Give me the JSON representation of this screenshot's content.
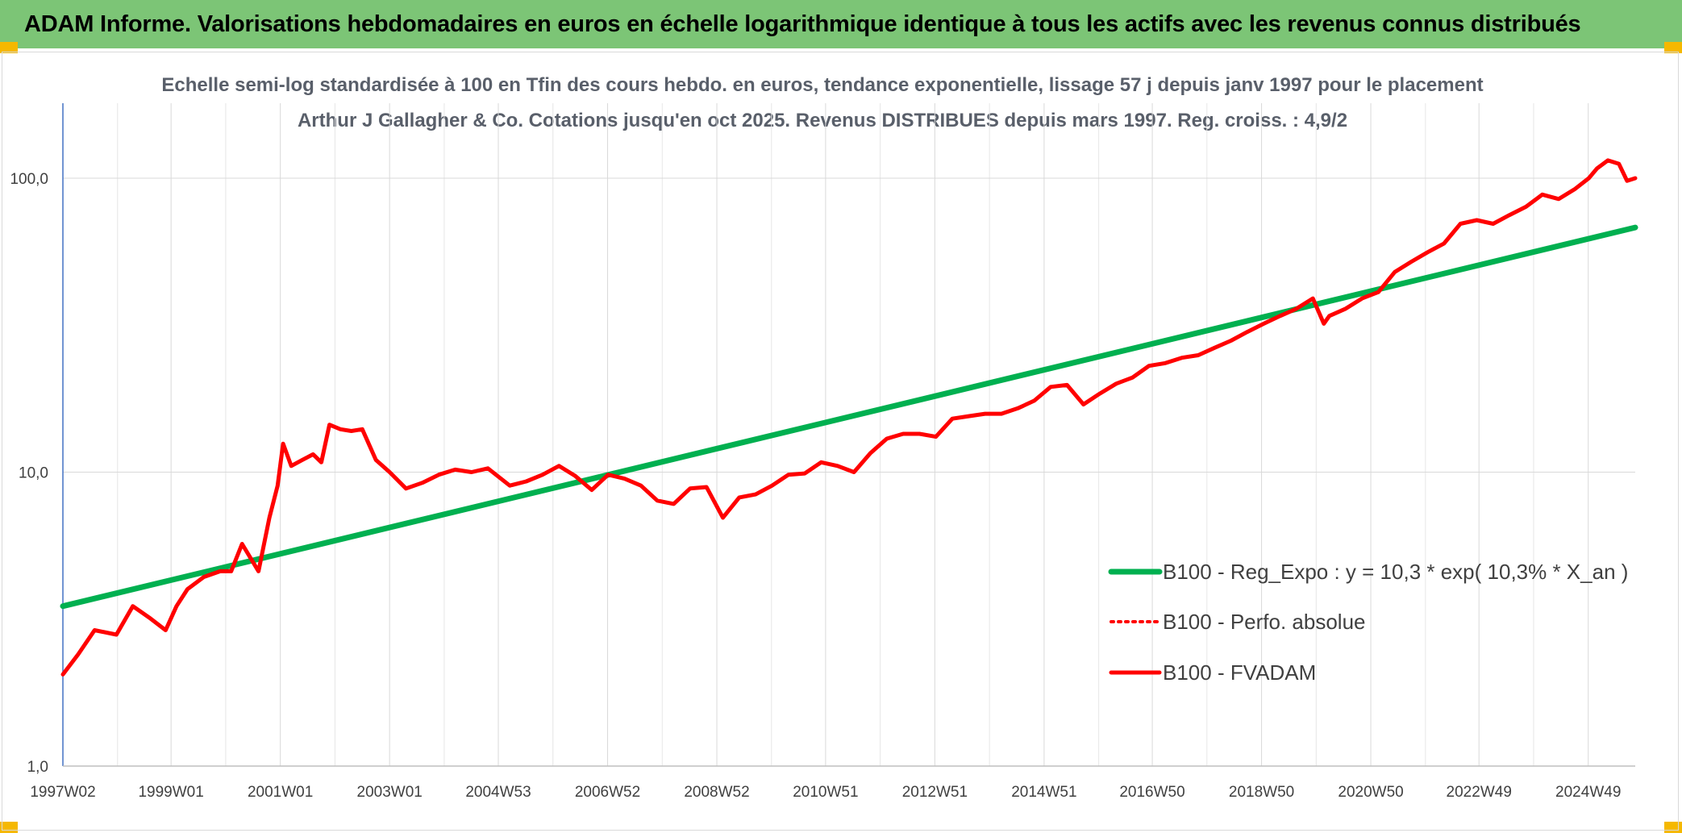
{
  "banner": {
    "title": "ADAM Informe. Valorisations hebdomadaires en euros en échelle logarithmique identique à tous les actifs avec les revenus connus distribués"
  },
  "chart_data": {
    "type": "line",
    "title": "Echelle semi-log standardisée à 100 en Tfin des cours hebdo. en euros, tendance exponentielle, lissage 57 j depuis janv 1997 pour le placement Arthur J Gallagher & Co. Cotations jusqu'en oct 2025. Revenus DISTRIBUES depuis mars 1997. Reg. croiss. : 4,9/2",
    "y_scale": "log",
    "ylim": [
      1,
      180
    ],
    "xlim": [
      1997.02,
      2025.8
    ],
    "grid": true,
    "legend_position": "right",
    "y_ticks": [
      {
        "value": 1,
        "label": "1,0"
      },
      {
        "value": 10,
        "label": "10,0"
      },
      {
        "value": 100,
        "label": "100,0"
      }
    ],
    "x_ticks": [
      {
        "value": 1997.02,
        "label": "1997W02"
      },
      {
        "value": 1999.0,
        "label": "1999W01"
      },
      {
        "value": 2001.0,
        "label": "2001W01"
      },
      {
        "value": 2003.0,
        "label": "2003W01"
      },
      {
        "value": 2004.99,
        "label": "2004W53"
      },
      {
        "value": 2006.99,
        "label": "2006W52"
      },
      {
        "value": 2008.99,
        "label": "2008W52"
      },
      {
        "value": 2010.98,
        "label": "2010W51"
      },
      {
        "value": 2012.98,
        "label": "2012W51"
      },
      {
        "value": 2014.98,
        "label": "2014W51"
      },
      {
        "value": 2016.96,
        "label": "2016W50"
      },
      {
        "value": 2018.96,
        "label": "2018W50"
      },
      {
        "value": 2020.96,
        "label": "2020W50"
      },
      {
        "value": 2022.94,
        "label": "2022W49"
      },
      {
        "value": 2024.94,
        "label": "2024W49"
      }
    ],
    "series": [
      {
        "name": "B100 - Reg_Expo : y = 10,3 * exp( 10,3% *  X_an )",
        "color": "#00b050",
        "style": "solid",
        "x": [
          1997.02,
          2025.8
        ],
        "y": [
          3.5,
          68
        ]
      },
      {
        "name": "B100 - Perfo. absolue",
        "color": "#ff0000",
        "style": "dotted",
        "x": [],
        "y": []
      },
      {
        "name": "B100 - FVADAM",
        "color": "#ff0000",
        "style": "solid",
        "x": [
          1997.02,
          1997.3,
          1997.6,
          1998.0,
          1998.3,
          1998.6,
          1998.9,
          1999.1,
          1999.3,
          1999.6,
          1999.9,
          2000.1,
          2000.3,
          2000.6,
          2000.8,
          2000.95,
          2001.05,
          2001.2,
          2001.4,
          2001.6,
          2001.75,
          2001.9,
          2002.1,
          2002.3,
          2002.5,
          2002.75,
          2003.0,
          2003.3,
          2003.6,
          2003.9,
          2004.2,
          2004.5,
          2004.8,
          2005.2,
          2005.5,
          2005.8,
          2006.1,
          2006.4,
          2006.7,
          2007.0,
          2007.3,
          2007.6,
          2007.9,
          2008.2,
          2008.5,
          2008.8,
          2009.1,
          2009.4,
          2009.7,
          2010.0,
          2010.3,
          2010.6,
          2010.9,
          2011.2,
          2011.5,
          2011.8,
          2012.1,
          2012.4,
          2012.7,
          2013.0,
          2013.3,
          2013.6,
          2013.9,
          2014.2,
          2014.5,
          2014.8,
          2015.1,
          2015.4,
          2015.7,
          2016.0,
          2016.3,
          2016.6,
          2016.9,
          2017.2,
          2017.5,
          2017.8,
          2018.1,
          2018.4,
          2018.7,
          2019.0,
          2019.3,
          2019.6,
          2019.9,
          2020.1,
          2020.2,
          2020.5,
          2020.8,
          2021.1,
          2021.4,
          2021.7,
          2022.0,
          2022.3,
          2022.6,
          2022.9,
          2023.2,
          2023.5,
          2023.8,
          2024.1,
          2024.4,
          2024.7,
          2024.95,
          2025.1,
          2025.3,
          2025.5,
          2025.65,
          2025.8
        ],
        "y": [
          2.05,
          2.4,
          2.9,
          2.8,
          3.5,
          3.2,
          2.9,
          3.5,
          4.0,
          4.4,
          4.6,
          4.6,
          5.7,
          4.6,
          7.0,
          9.0,
          12.5,
          10.5,
          11.0,
          11.5,
          10.8,
          14.5,
          14.0,
          13.8,
          14.0,
          11.0,
          10.0,
          8.8,
          9.2,
          9.8,
          10.2,
          10.0,
          10.3,
          9.0,
          9.3,
          9.8,
          10.5,
          9.7,
          8.7,
          9.8,
          9.5,
          9.0,
          8.0,
          7.8,
          8.8,
          8.9,
          7.0,
          8.2,
          8.4,
          9.0,
          9.8,
          9.9,
          10.8,
          10.5,
          10.0,
          11.6,
          13.0,
          13.5,
          13.5,
          13.2,
          15.2,
          15.5,
          15.8,
          15.8,
          16.5,
          17.5,
          19.5,
          19.8,
          17.0,
          18.5,
          20.0,
          21.0,
          23.0,
          23.5,
          24.5,
          25.0,
          26.5,
          28.0,
          30.0,
          32.0,
          34.0,
          36.0,
          39.0,
          32.0,
          34.0,
          36.0,
          39.0,
          41.0,
          48.0,
          52.0,
          56.0,
          60.0,
          70.0,
          72.0,
          70.0,
          75.0,
          80.0,
          88.0,
          85.0,
          92.0,
          100.0,
          108.0,
          115.0,
          112.0,
          98.0,
          100.0
        ]
      }
    ]
  }
}
